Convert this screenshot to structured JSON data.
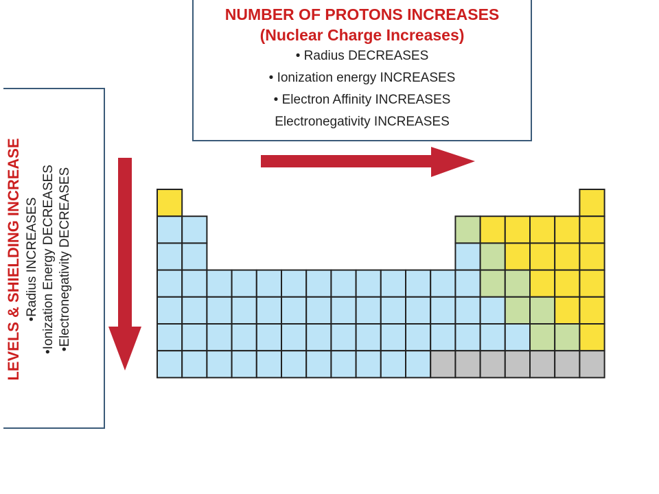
{
  "top_box": {
    "title_line1": "NUMBER OF PROTONS INCREASES",
    "title_line2": "(Nuclear Charge Increases)",
    "bullets": [
      "Radius DECREASES",
      "Ionization energy INCREASES",
      "Electron Affinity INCREASES",
      "Electronegativity INCREASES"
    ]
  },
  "side_box": {
    "title": "LEVELS & SHIELDING INCREASE",
    "bullets": [
      "Radius INCREASES",
      "Ionization Energy DECREASES",
      "Electronegativity DECREASES"
    ]
  },
  "colors": {
    "arrow": "#c22433",
    "blue": "#bde4f7",
    "yellow": "#fae13d",
    "green": "#c8dfa3",
    "gray": "#c3c3c3",
    "box_border": "#3a5a78",
    "title_red": "#cc1f1f"
  }
}
